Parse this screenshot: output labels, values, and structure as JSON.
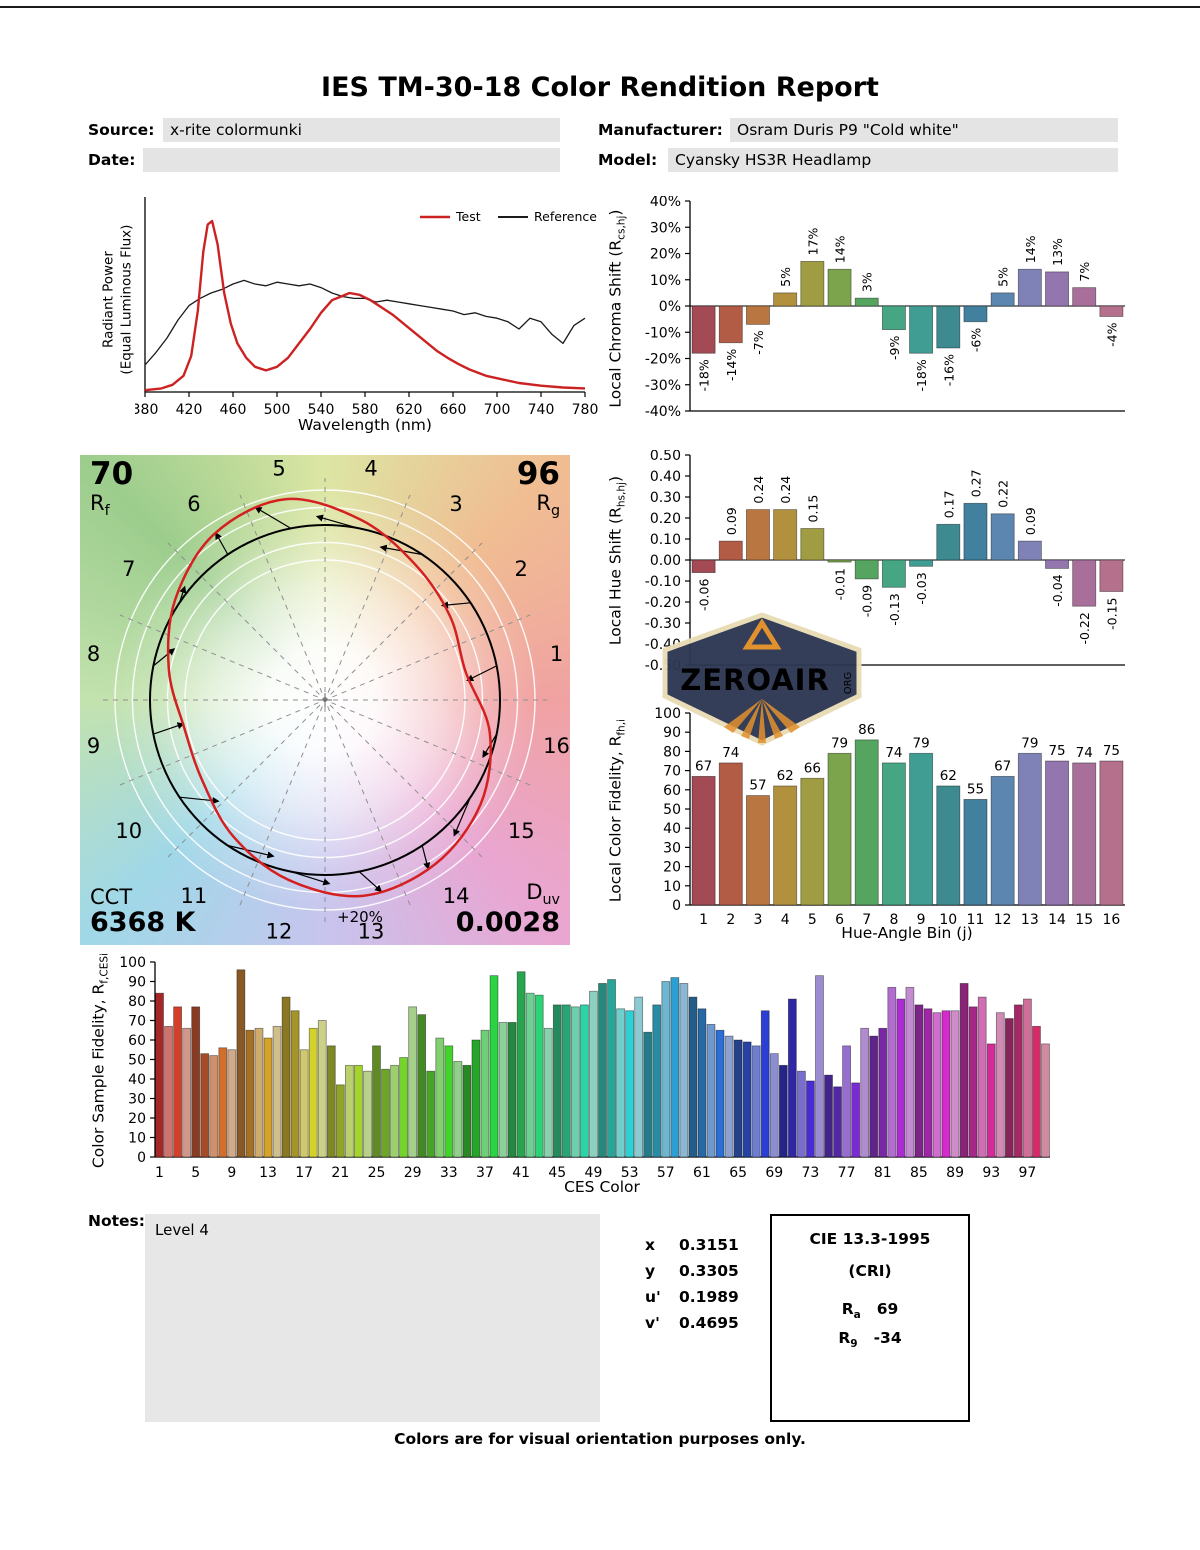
{
  "title": "IES TM-30-18 Color Rendition Report",
  "header": {
    "source_label": "Source:",
    "source_value": "x-rite colormunki",
    "manufacturer_label": "Manufacturer:",
    "manufacturer_value": "Osram Duris P9 \"Cold white\"",
    "date_label": "Date:",
    "date_value": "",
    "model_label": "Model:",
    "model_value": "Cyansky HS3R Headlamp"
  },
  "hue_bin_colors": [
    "#a34a54",
    "#b25c45",
    "#ba7640",
    "#b2913e",
    "#9f9c42",
    "#7ba44c",
    "#55a560",
    "#46a683",
    "#3f9d94",
    "#3d8a90",
    "#41809e",
    "#5c85b0",
    "#7e82b6",
    "#9376ad",
    "#a76f99",
    "#b5718b"
  ],
  "chart_data": [
    {
      "id": "spd",
      "type": "line",
      "xlabel": "Wavelength (nm)",
      "ylabel_line1": "Radiant Power",
      "ylabel_line2": "(Equal Luminous Flux)",
      "xlim": [
        380,
        780
      ],
      "xticks": [
        380,
        420,
        460,
        500,
        540,
        580,
        620,
        660,
        700,
        740,
        780
      ],
      "ylim": [
        0,
        1
      ],
      "grid": false,
      "legend_position": "top-right",
      "series": [
        {
          "name": "Test",
          "color": "#cc2222",
          "x": [
            380,
            395,
            405,
            415,
            422,
            428,
            433,
            437,
            441,
            446,
            452,
            458,
            464,
            472,
            480,
            490,
            500,
            510,
            520,
            530,
            540,
            550,
            558,
            566,
            575,
            585,
            595,
            605,
            615,
            625,
            635,
            645,
            655,
            665,
            675,
            690,
            705,
            720,
            740,
            760,
            780
          ],
          "y": [
            0.01,
            0.02,
            0.04,
            0.09,
            0.2,
            0.45,
            0.78,
            0.93,
            0.95,
            0.82,
            0.55,
            0.38,
            0.27,
            0.19,
            0.14,
            0.12,
            0.14,
            0.19,
            0.27,
            0.35,
            0.44,
            0.51,
            0.53,
            0.55,
            0.54,
            0.51,
            0.47,
            0.43,
            0.38,
            0.33,
            0.28,
            0.23,
            0.19,
            0.155,
            0.125,
            0.09,
            0.07,
            0.05,
            0.035,
            0.025,
            0.02
          ]
        },
        {
          "name": "Reference",
          "color": "#1a1a1a",
          "x": [
            380,
            390,
            400,
            410,
            420,
            430,
            440,
            450,
            460,
            470,
            480,
            490,
            500,
            510,
            520,
            530,
            540,
            550,
            560,
            570,
            580,
            590,
            600,
            610,
            620,
            630,
            640,
            650,
            660,
            670,
            680,
            690,
            700,
            710,
            720,
            730,
            740,
            750,
            760,
            770,
            780
          ],
          "y": [
            0.15,
            0.22,
            0.3,
            0.4,
            0.48,
            0.52,
            0.55,
            0.57,
            0.6,
            0.62,
            0.6,
            0.59,
            0.61,
            0.6,
            0.59,
            0.6,
            0.58,
            0.55,
            0.53,
            0.52,
            0.52,
            0.5,
            0.51,
            0.5,
            0.49,
            0.48,
            0.47,
            0.46,
            0.45,
            0.43,
            0.44,
            0.42,
            0.41,
            0.39,
            0.35,
            0.41,
            0.39,
            0.32,
            0.27,
            0.37,
            0.41
          ]
        }
      ]
    },
    {
      "id": "chroma_shift",
      "type": "bar",
      "ylabel_pre": "Local Chroma Shift (R",
      "ylabel_sub": "cs,hj",
      "ylabel_post": ")",
      "ylim": [
        -40,
        40
      ],
      "ytick_step": 10,
      "ytick_suffix": "%",
      "categories": [
        1,
        2,
        3,
        4,
        5,
        6,
        7,
        8,
        9,
        10,
        11,
        12,
        13,
        14,
        15,
        16
      ],
      "values": [
        -18,
        -14,
        -7,
        5,
        17,
        14,
        3,
        -9,
        -18,
        -16,
        -6,
        5,
        14,
        13,
        7,
        -4
      ],
      "value_suffix": "%"
    },
    {
      "id": "hue_shift",
      "type": "bar",
      "ylabel_pre": "Local Hue Shift (R",
      "ylabel_sub": "hs,hj",
      "ylabel_post": ")",
      "ylim": [
        -0.5,
        0.5
      ],
      "ytick_step": 0.1,
      "categories": [
        1,
        2,
        3,
        4,
        5,
        6,
        7,
        8,
        9,
        10,
        11,
        12,
        13,
        14,
        15,
        16
      ],
      "values": [
        -0.06,
        0.09,
        0.24,
        0.24,
        0.15,
        -0.01,
        -0.09,
        -0.13,
        -0.03,
        0.17,
        0.27,
        0.22,
        0.09,
        -0.04,
        -0.22,
        -0.15
      ]
    },
    {
      "id": "local_color_fidelity",
      "type": "bar",
      "ylabel_pre": "Local Color Fidelity, R",
      "ylabel_sub": "fh,i",
      "ylabel_post": "",
      "xlabel": "Hue-Angle Bin (j)",
      "ylim": [
        0,
        100
      ],
      "ytick_step": 10,
      "categories": [
        1,
        2,
        3,
        4,
        5,
        6,
        7,
        8,
        9,
        10,
        11,
        12,
        13,
        14,
        15,
        16
      ],
      "values": [
        67,
        74,
        57,
        62,
        66,
        79,
        86,
        74,
        79,
        62,
        55,
        67,
        79,
        75,
        74,
        75
      ]
    },
    {
      "id": "ces_fidelity",
      "type": "bar",
      "ylabel_pre": "Color Sample Fidelity, R",
      "ylabel_sub": "f,CESi",
      "ylabel_post": "",
      "xlabel": "CES Color",
      "ylim": [
        0,
        100
      ],
      "ytick_step": 10,
      "xticks": [
        1,
        5,
        9,
        13,
        17,
        21,
        25,
        29,
        33,
        37,
        41,
        45,
        49,
        53,
        57,
        61,
        65,
        69,
        73,
        77,
        81,
        85,
        89,
        93,
        97
      ],
      "values": [
        84,
        67,
        77,
        66,
        77,
        53,
        52,
        56,
        55,
        96,
        65,
        66,
        61,
        67,
        82,
        75,
        55,
        66,
        70,
        57,
        37,
        47,
        47,
        44,
        57,
        45,
        47,
        51,
        77,
        73,
        44,
        61,
        57,
        49,
        47,
        60,
        65,
        93,
        69,
        69,
        95,
        84,
        83,
        66,
        78,
        78,
        77,
        78,
        85,
        89,
        91,
        76,
        75,
        82,
        64,
        78,
        90,
        92,
        89,
        82,
        76,
        68,
        65,
        62,
        60,
        59,
        57,
        75,
        53,
        47,
        81,
        44,
        39,
        93,
        42,
        36,
        57,
        38,
        66,
        62,
        66,
        87,
        81,
        87,
        78,
        76,
        74,
        75,
        75,
        89,
        77,
        82,
        58,
        74,
        71,
        78,
        81,
        67,
        58
      ]
    }
  ],
  "cvg": {
    "rf_value": "70",
    "rf_sym": "R",
    "rf_sub": "f",
    "rg_value": "96",
    "rg_sym": "R",
    "rg_sub": "g",
    "cct_label": "CCT",
    "cct_value": "6368 K",
    "duv_sym": "D",
    "duv_sub": "uv",
    "duv_value": "0.0028",
    "ring_label": "+20%",
    "bins": [
      1,
      2,
      3,
      4,
      5,
      6,
      7,
      8,
      9,
      10,
      11,
      12,
      13,
      14,
      15,
      16
    ]
  },
  "notes": {
    "label": "Notes:",
    "value": "Level 4"
  },
  "chromaticity": {
    "rows": [
      {
        "label": "x",
        "value": "0.3151"
      },
      {
        "label": "y",
        "value": "0.3305"
      },
      {
        "label": "u'",
        "value": "0.1989"
      },
      {
        "label": "v'",
        "value": "0.4695"
      }
    ]
  },
  "cri": {
    "title": "CIE 13.3-1995",
    "subtitle": "(CRI)",
    "ra": {
      "base": "R",
      "sub": "a",
      "value": "69"
    },
    "r9": {
      "base": "R",
      "sub": "9",
      "value": "-34"
    }
  },
  "watermark": {
    "name": "ZEROAIR",
    "tld": "ORG"
  },
  "footer": "Colors are for visual orientation purposes only."
}
